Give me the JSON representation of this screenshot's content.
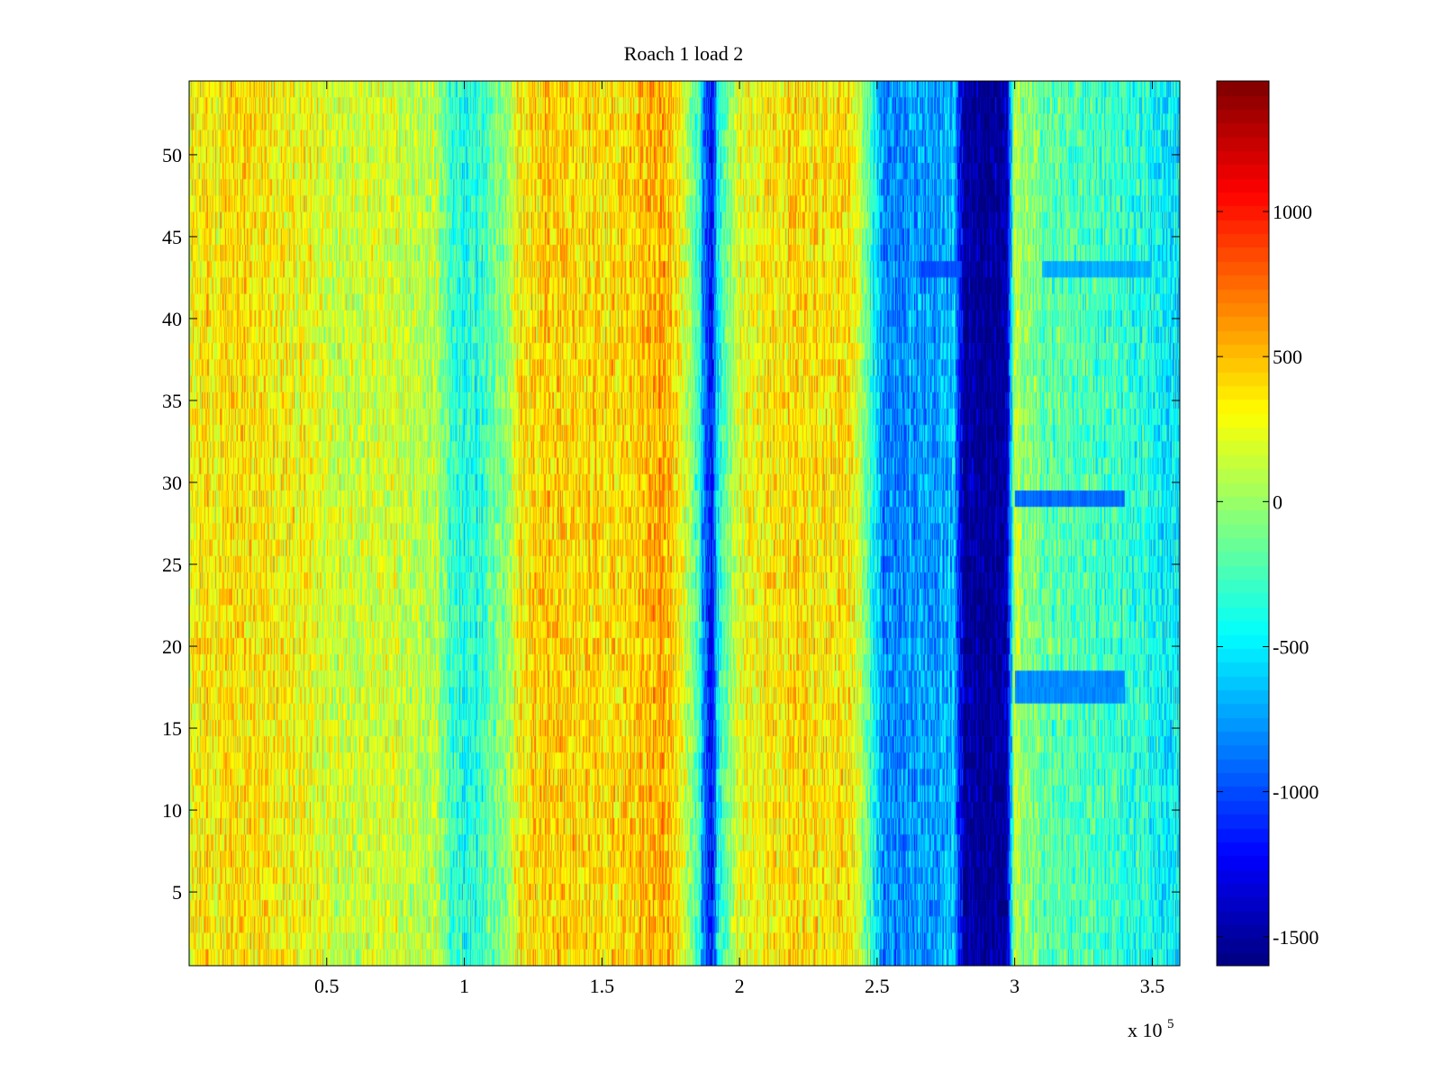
{
  "chart_data": {
    "type": "heatmap",
    "title": "Roach 1 load 2",
    "xlabel": "",
    "ylabel": "",
    "x_exponent_label": "x 10",
    "x_exponent_power": "5",
    "xlim": [
      0,
      3.6
    ],
    "ylim": [
      0.5,
      54.5
    ],
    "xticks": [
      0.5,
      1,
      1.5,
      2,
      2.5,
      3,
      3.5
    ],
    "xtick_labels": [
      "0.5",
      "1",
      "1.5",
      "2",
      "2.5",
      "3",
      "3.5"
    ],
    "yticks": [
      5,
      10,
      15,
      20,
      25,
      30,
      35,
      40,
      45,
      50
    ],
    "ytick_labels": [
      "5",
      "10",
      "15",
      "20",
      "25",
      "30",
      "35",
      "40",
      "45",
      "50"
    ],
    "rows": 54,
    "colormap": "jet",
    "clim": [
      -1600,
      1450
    ],
    "colorbar_ticks": [
      1000,
      500,
      0,
      -500,
      -1000,
      -1500
    ],
    "colorbar_tick_labels": [
      "1000",
      "500",
      "0",
      "-500",
      "-1000",
      "-1500"
    ],
    "column_profile": {
      "x": [
        0,
        0.1,
        0.2,
        0.3,
        0.4,
        0.5,
        0.6,
        0.7,
        0.8,
        0.9,
        0.95,
        1.0,
        1.05,
        1.1,
        1.15,
        1.2,
        1.3,
        1.4,
        1.5,
        1.6,
        1.7,
        1.75,
        1.8,
        1.85,
        1.88,
        1.9,
        1.92,
        1.95,
        2.0,
        2.1,
        2.2,
        2.3,
        2.4,
        2.48,
        2.52,
        2.6,
        2.7,
        2.78,
        2.82,
        2.9,
        2.97,
        3.0,
        3.1,
        3.2,
        3.3,
        3.4,
        3.5,
        3.6
      ],
      "mean_value": [
        300,
        350,
        380,
        320,
        280,
        200,
        180,
        170,
        120,
        80,
        -250,
        -400,
        -350,
        -200,
        -50,
        350,
        450,
        420,
        380,
        420,
        550,
        450,
        150,
        -250,
        -1100,
        -1200,
        -500,
        -150,
        200,
        350,
        380,
        350,
        420,
        -300,
        -800,
        -850,
        -700,
        -650,
        -1550,
        -1600,
        -1500,
        50,
        -150,
        -200,
        -250,
        -300,
        -400,
        -500
      ]
    },
    "horizontal_streaks": [
      {
        "y": 29,
        "x_start": 3.0,
        "x_end": 3.4,
        "value": -900
      },
      {
        "y": 17.5,
        "x_start": 3.0,
        "x_end": 3.4,
        "value": -800
      },
      {
        "y": 43,
        "x_start": 2.65,
        "x_end": 2.8,
        "value": -1000
      },
      {
        "y": 43,
        "x_start": 3.1,
        "x_end": 3.5,
        "value": -700
      }
    ],
    "noise_amplitude": 280,
    "random_seed": 12345
  }
}
